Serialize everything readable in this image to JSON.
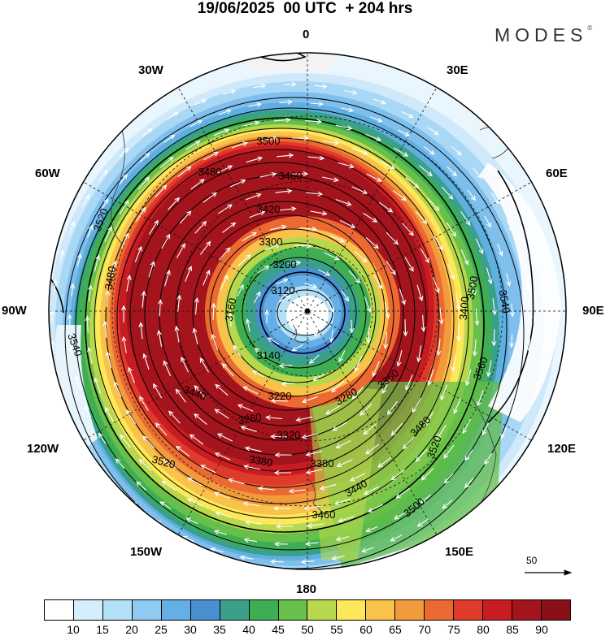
{
  "title": "19/06/2025  00 UTC  + 204 hrs",
  "brand": "MODES",
  "brand_mark": "©",
  "longitude_labels": {
    "north": "0",
    "n30e": "30E",
    "n60e": "60E",
    "e90": "90E",
    "s120e": "120E",
    "s150e": "150E",
    "south": "180",
    "s150w": "150W",
    "s120w": "120W",
    "w90": "90W",
    "n60w": "60W",
    "n30w": "30W"
  },
  "contour_labels": [
    "3500",
    "3480",
    "3460",
    "3420",
    "3300",
    "3200",
    "3120",
    "3140",
    "3160",
    "3400",
    "3500",
    "3540",
    "3520",
    "3540",
    "3480",
    "3220",
    "3260",
    "3280",
    "3320",
    "3380",
    "3380",
    "3440",
    "3460",
    "3500",
    "3520",
    "3520",
    "3480",
    "3560",
    "3440",
    "3360"
  ],
  "vector_reference": {
    "label": "50"
  },
  "colorbar": {
    "labels": [
      "10",
      "15",
      "20",
      "25",
      "30",
      "35",
      "40",
      "45",
      "50",
      "55",
      "60",
      "65",
      "70",
      "75",
      "80",
      "85",
      "90"
    ],
    "colors": [
      "#ffffff",
      "#d4eefc",
      "#b4e0f8",
      "#8ecaf2",
      "#66aee6",
      "#4a8fd0",
      "#3aa089",
      "#3fae53",
      "#66c04a",
      "#b7d84d",
      "#fde85a",
      "#f9c24a",
      "#f29b3c",
      "#ec6a32",
      "#e03a2a",
      "#c81c23",
      "#a3141c",
      "#8a1017"
    ]
  }
}
